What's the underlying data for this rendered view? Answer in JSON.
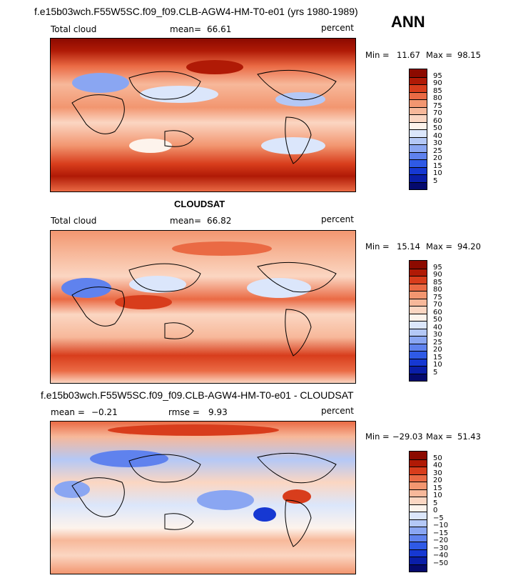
{
  "chart_data": [
    {
      "type": "heatmap",
      "title": "f.e15b03wch.F55W5SC.f09_f09.CLB-AGW4-HM-T0-e01 (yrs 1980-1989)",
      "season": "ANN",
      "variable": "Total cloud",
      "units": "percent",
      "mean_label": "mean=",
      "mean": "66.61",
      "min_label": "Min =",
      "min": "11.67",
      "max_label": "Max =",
      "max": "98.15",
      "levels": [
        "5",
        "10",
        "15",
        "20",
        "25",
        "30",
        "40",
        "50",
        "60",
        "70",
        "75",
        "80",
        "85",
        "90",
        "95"
      ],
      "colors": [
        "#050a6e",
        "#0a1ea8",
        "#1638d2",
        "#2f5ae6",
        "#5f82ee",
        "#8aa6f2",
        "#b4c8f6",
        "#dbe6fb",
        "#fdf3ec",
        "#fbd6c2",
        "#f7b89a",
        "#f29670",
        "#ea6a44",
        "#d83d1c",
        "#b01a06",
        "#8c0a00"
      ]
    },
    {
      "type": "heatmap",
      "title": "CLOUDSAT",
      "variable": "Total cloud",
      "units": "percent",
      "mean_label": "mean=",
      "mean": "66.82",
      "min_label": "Min =",
      "min": "15.14",
      "max_label": "Max =",
      "max": "94.20",
      "levels": [
        "5",
        "10",
        "15",
        "20",
        "25",
        "30",
        "40",
        "50",
        "60",
        "70",
        "75",
        "80",
        "85",
        "90",
        "95"
      ],
      "colors": [
        "#050a6e",
        "#0a1ea8",
        "#1638d2",
        "#2f5ae6",
        "#5f82ee",
        "#8aa6f2",
        "#b4c8f6",
        "#dbe6fb",
        "#fdf3ec",
        "#fbd6c2",
        "#f7b89a",
        "#f29670",
        "#ea6a44",
        "#d83d1c",
        "#b01a06",
        "#8c0a00"
      ]
    },
    {
      "type": "heatmap",
      "title": "f.e15b03wch.F55W5SC.f09_f09.CLB-AGW4-HM-T0-e01 - CLOUDSAT",
      "units": "percent",
      "mean_label": "mean =",
      "mean": "−0.21",
      "rmse_label": "rmse =",
      "rmse": "9.93",
      "min_label": "Min =",
      "min": "−29.03",
      "max_label": "Max =",
      "max": "51.43",
      "levels": [
        "−50",
        "−40",
        "−30",
        "−20",
        "−15",
        "−10",
        "−5",
        "0",
        "5",
        "10",
        "15",
        "20",
        "30",
        "40",
        "50"
      ],
      "colors": [
        "#050a6e",
        "#0a1ea8",
        "#1638d2",
        "#2f5ae6",
        "#5f82ee",
        "#8aa6f2",
        "#b4c8f6",
        "#dbe6fb",
        "#fdf3ec",
        "#fbd6c2",
        "#f7b89a",
        "#f29670",
        "#ea6a44",
        "#d83d1c",
        "#b01a06",
        "#8c0a00"
      ]
    }
  ]
}
